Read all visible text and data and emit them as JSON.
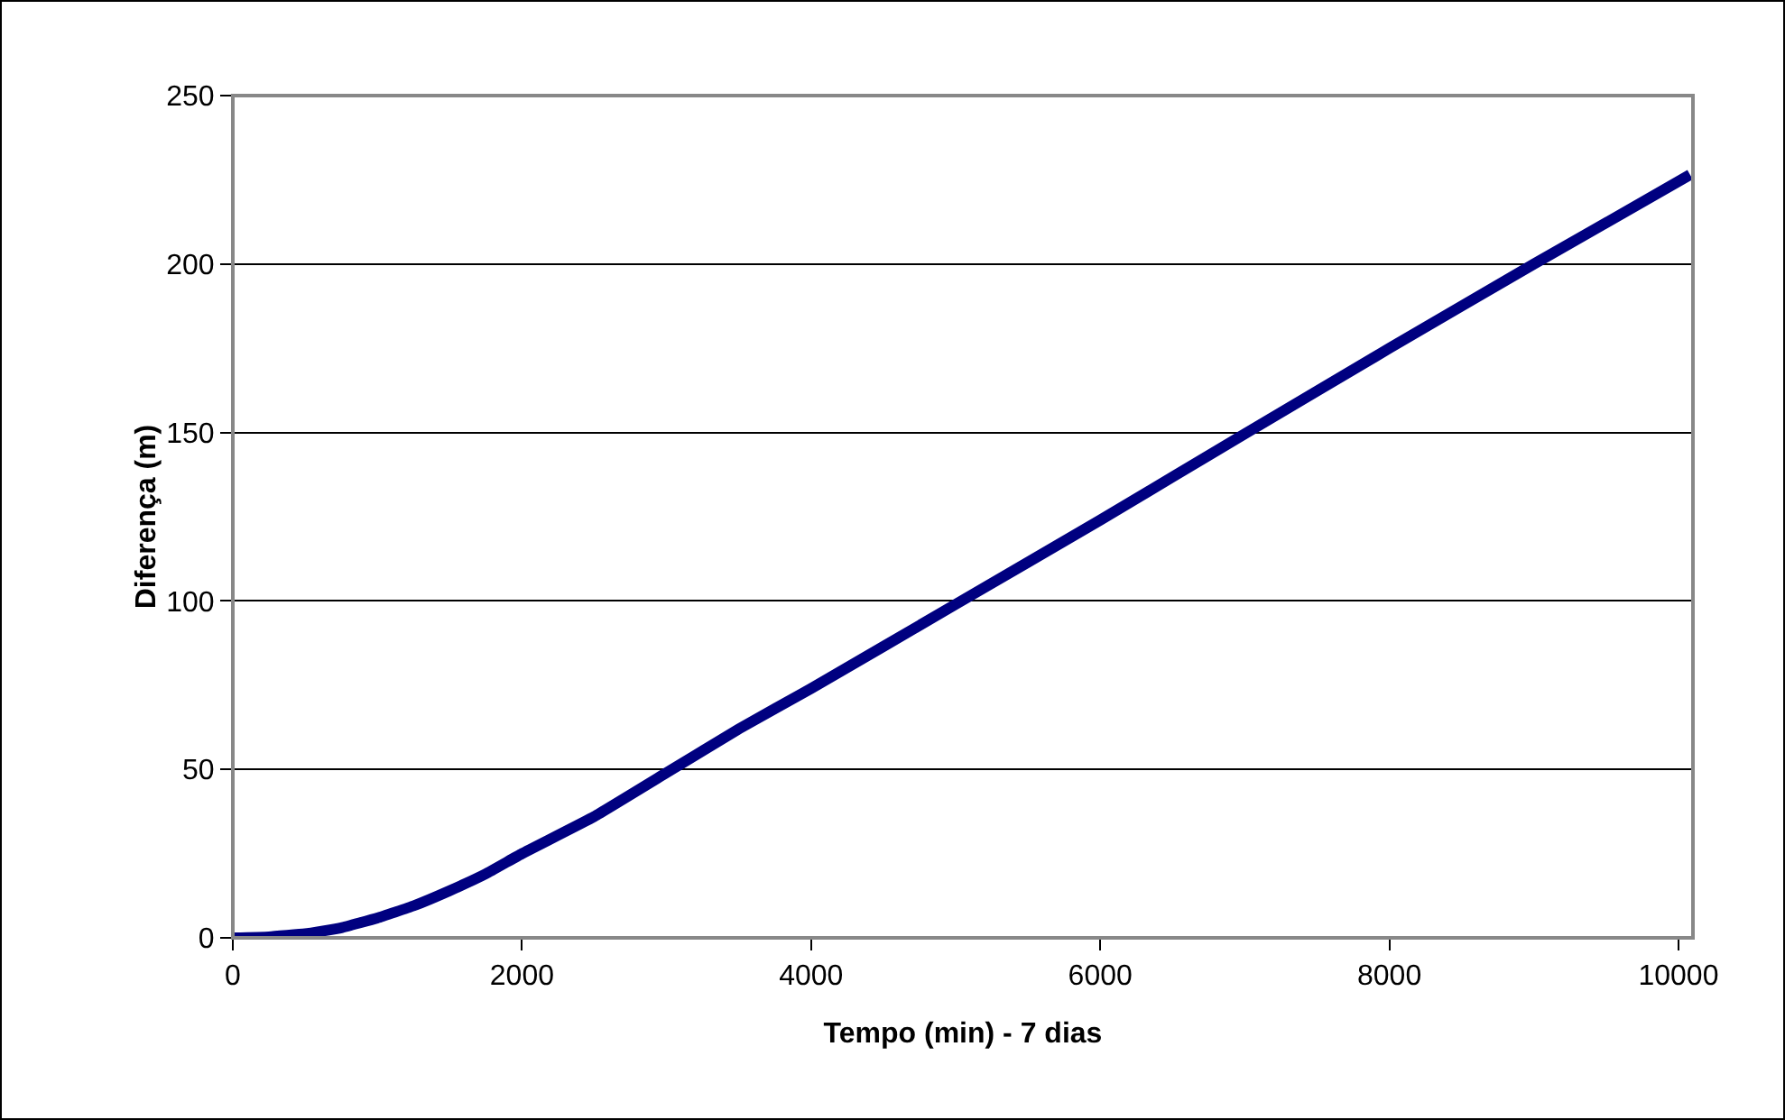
{
  "chart_data": {
    "type": "line",
    "xlabel": "Tempo (min) - 7 dias",
    "ylabel": "Diferença (m)",
    "x": [
      0,
      250,
      500,
      750,
      1000,
      1250,
      1500,
      1750,
      2000,
      2500,
      3000,
      3500,
      4000,
      5000,
      6000,
      7000,
      8000,
      9000,
      10080
    ],
    "series": [
      {
        "color": "#000080",
        "values": [
          0,
          0.3,
          1.2,
          3,
          5.9,
          9.5,
          14,
          19,
          25,
          36,
          49,
          62,
          74,
          99,
          124,
          149.6,
          175,
          200,
          226.5
        ]
      }
    ],
    "xlim": [
      0,
      10100
    ],
    "xticks": [
      0,
      2000,
      4000,
      6000,
      8000,
      10000
    ],
    "ylim": [
      0,
      250
    ],
    "yticks": [
      0,
      50,
      100,
      150,
      200,
      250
    ],
    "grid": "y",
    "marker": "none",
    "line_style": "solid"
  }
}
